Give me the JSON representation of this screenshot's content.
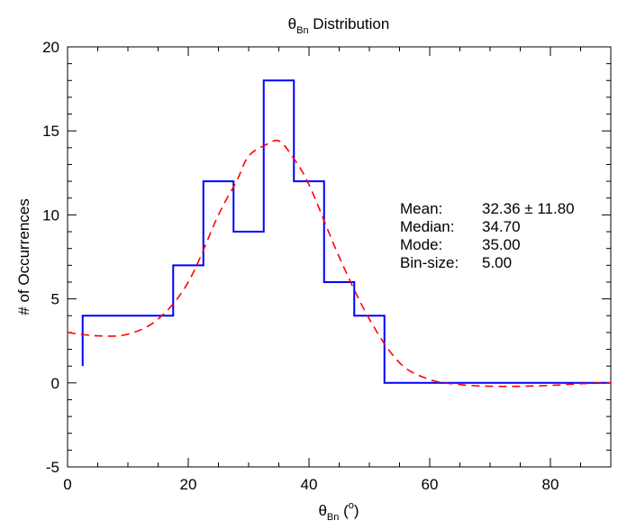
{
  "chart_data": {
    "type": "histogram",
    "title": {
      "main": "θ",
      "sub": "Bn",
      "rest": " Distribution"
    },
    "xlabel": {
      "main": "θ",
      "sub": "Bn",
      "rest_open": " (",
      "sup": "o",
      "rest_close": ")"
    },
    "ylabel": "# of Occurrences",
    "xlim": [
      0,
      90
    ],
    "ylim": [
      -5,
      20
    ],
    "x_major_ticks": [
      0,
      20,
      40,
      60,
      80
    ],
    "x_major_labels": [
      "0",
      "20",
      "40",
      "60",
      "80"
    ],
    "x_minor_step": 5,
    "y_major_ticks": [
      -5,
      0,
      5,
      10,
      15,
      20
    ],
    "y_major_labels": [
      "-5",
      "0",
      "5",
      "10",
      "15",
      "20"
    ],
    "y_minor_step": 1,
    "series": [
      {
        "name": "histogram",
        "style": "step",
        "color": "#0000ff",
        "x": [
          2.5,
          2.5,
          17.5,
          17.5,
          22.5,
          22.5,
          27.5,
          27.5,
          32.5,
          32.5,
          37.5,
          37.5,
          42.5,
          42.5,
          47.5,
          47.5,
          52.5,
          52.5,
          90
        ],
        "y": [
          1,
          4,
          4,
          7,
          7,
          12,
          12,
          9,
          9,
          18,
          18,
          12,
          12,
          6,
          6,
          4,
          4,
          0,
          0
        ]
      },
      {
        "name": "fit",
        "style": "dashed",
        "color": "#ff0000",
        "x": [
          0,
          5,
          10,
          15,
          20,
          25,
          28,
          30,
          33,
          35,
          37,
          40,
          45,
          50,
          55,
          60,
          65,
          70,
          75,
          80,
          85,
          90
        ],
        "y": [
          3.0,
          2.8,
          2.9,
          3.8,
          6.0,
          10.0,
          12.0,
          13.5,
          14.2,
          14.4,
          13.6,
          11.8,
          7.5,
          3.8,
          1.2,
          0.2,
          -0.1,
          -0.2,
          -0.2,
          -0.15,
          -0.05,
          0.0
        ]
      }
    ],
    "stats": [
      {
        "label": "Mean:",
        "value": "32.36 ± 11.80"
      },
      {
        "label": "Median:",
        "value": "34.70"
      },
      {
        "label": "Mode:",
        "value": "35.00"
      },
      {
        "label": "Bin-size:",
        "value": "5.00"
      }
    ]
  }
}
